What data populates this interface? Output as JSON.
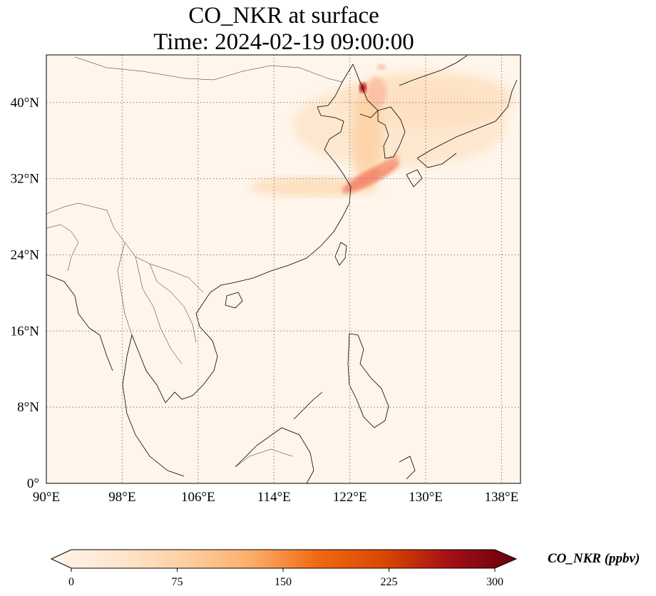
{
  "title": {
    "line1": "CO_NKR at surface",
    "line2": "Time: 2024-02-19 09:00:00"
  },
  "map": {
    "projection": "PlateCarree",
    "lon_range": [
      90,
      140
    ],
    "lat_range": [
      0,
      45
    ],
    "lon_ticks": [
      {
        "value": 90,
        "label": "90°E"
      },
      {
        "value": 98,
        "label": "98°E"
      },
      {
        "value": 106,
        "label": "106°E"
      },
      {
        "value": 114,
        "label": "114°E"
      },
      {
        "value": 122,
        "label": "122°E"
      },
      {
        "value": 130,
        "label": "130°E"
      },
      {
        "value": 138,
        "label": "138°E"
      }
    ],
    "lat_ticks": [
      {
        "value": 0,
        "label": "0°"
      },
      {
        "value": 8,
        "label": "8°N"
      },
      {
        "value": 16,
        "label": "16°N"
      },
      {
        "value": 24,
        "label": "24°N"
      },
      {
        "value": 32,
        "label": "32°N"
      },
      {
        "value": 40,
        "label": "40°N"
      }
    ],
    "gridlines": true,
    "background_color": "#fff5eb",
    "coastline_color": "#000000"
  },
  "colorbar": {
    "cmap": "OrRd",
    "min": 0,
    "max": 300,
    "extend": "both",
    "ticks": [
      {
        "value": 0,
        "label": "0"
      },
      {
        "value": 75,
        "label": "75"
      },
      {
        "value": 150,
        "label": "150"
      },
      {
        "value": 225,
        "label": "225"
      },
      {
        "value": 300,
        "label": "300"
      }
    ],
    "label": "CO_NKR (ppbv)",
    "colors": [
      "#fff5eb",
      "#fee6ce",
      "#fdd0a2",
      "#fdae6b",
      "#f16913",
      "#d94801",
      "#a50f15",
      "#67000d"
    ]
  },
  "plumes": [
    {
      "lon": 121.8,
      "lat": 31.3,
      "value": 160
    },
    {
      "lon": 124.5,
      "lat": 33.5,
      "value": 110
    },
    {
      "lon": 123.2,
      "lat": 41.8,
      "value": 300
    }
  ]
}
